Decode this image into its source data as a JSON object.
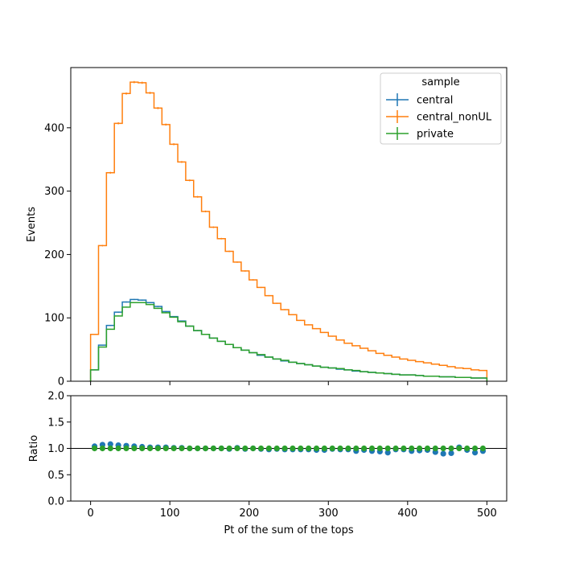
{
  "chart_data": {
    "type": "histogram-step",
    "xlabel": "Pt of the sum of the tops",
    "xlim": [
      -25,
      525
    ],
    "xticks": [
      0,
      100,
      200,
      300,
      400,
      500
    ],
    "legend": {
      "title": "sample",
      "placement": "top-right"
    },
    "main": {
      "ylabel": "Events",
      "ylim": [
        0,
        495
      ],
      "yticks": [
        0,
        100,
        200,
        300,
        400
      ],
      "bin_edges": [
        0,
        10,
        20,
        30,
        40,
        50,
        60,
        70,
        80,
        90,
        100,
        110,
        120,
        130,
        140,
        150,
        160,
        170,
        180,
        190,
        200,
        210,
        220,
        230,
        240,
        250,
        260,
        270,
        280,
        290,
        300,
        310,
        320,
        330,
        340,
        350,
        360,
        370,
        380,
        390,
        400,
        410,
        420,
        430,
        440,
        450,
        460,
        470,
        480,
        490,
        500
      ],
      "series": [
        {
          "name": "central",
          "color": "#1f77b4",
          "values": [
            18,
            57,
            88,
            109,
            125,
            129,
            128,
            124,
            118,
            110,
            102,
            95,
            87,
            80,
            74,
            68,
            63,
            58,
            53,
            49,
            45,
            41,
            38,
            35,
            32,
            30,
            28,
            26,
            24,
            22,
            21,
            19,
            18,
            16,
            15,
            14,
            13,
            12,
            11,
            10,
            10,
            9,
            8,
            8,
            7,
            7,
            6,
            6,
            5,
            5
          ]
        },
        {
          "name": "central_nonUL",
          "color": "#ff7f0e",
          "values": [
            74,
            214,
            329,
            407,
            454,
            472,
            471,
            455,
            431,
            405,
            374,
            346,
            317,
            291,
            268,
            243,
            225,
            205,
            188,
            174,
            160,
            148,
            135,
            123,
            113,
            105,
            96,
            89,
            83,
            77,
            71,
            65,
            60,
            56,
            52,
            48,
            44,
            41,
            38,
            35,
            33,
            31,
            29,
            27,
            25,
            23,
            21,
            20,
            18,
            17
          ]
        },
        {
          "name": "private",
          "color": "#2ca02c",
          "values": [
            18,
            54,
            82,
            103,
            117,
            124,
            124,
            121,
            115,
            108,
            101,
            94,
            87,
            80,
            74,
            68,
            63,
            58,
            53,
            49,
            45,
            42,
            38,
            35,
            33,
            30,
            28,
            26,
            24,
            22,
            21,
            20,
            18,
            17,
            15,
            14,
            13,
            12,
            11,
            10,
            10,
            9,
            8,
            8,
            7,
            7,
            6,
            6,
            5,
            5
          ]
        }
      ]
    },
    "ratio": {
      "ylabel": "Ratio",
      "ylim": [
        0,
        2
      ],
      "yticks": [
        0,
        0.5,
        1.0,
        1.5,
        2.0
      ],
      "ytick_labels": [
        "0.0",
        "0.5",
        "1.0",
        "1.5",
        "2.0"
      ],
      "reference_line": 1.0,
      "x": [
        5,
        15,
        25,
        35,
        45,
        55,
        65,
        75,
        85,
        95,
        105,
        115,
        125,
        135,
        145,
        155,
        165,
        175,
        185,
        195,
        205,
        215,
        225,
        235,
        245,
        255,
        265,
        275,
        285,
        295,
        305,
        315,
        325,
        335,
        345,
        355,
        365,
        375,
        385,
        395,
        405,
        415,
        425,
        435,
        445,
        455,
        465,
        475,
        485,
        495
      ],
      "series": [
        {
          "name": "central",
          "color": "#1f77b4",
          "values": [
            1.04,
            1.07,
            1.08,
            1.06,
            1.05,
            1.04,
            1.03,
            1.02,
            1.02,
            1.02,
            1.01,
            1.01,
            1.0,
            1.0,
            1.0,
            1.0,
            1.0,
            0.99,
            1.01,
            0.99,
            1.0,
            0.99,
            0.98,
            0.99,
            0.98,
            0.98,
            0.98,
            0.98,
            0.97,
            0.97,
            0.99,
            0.98,
            0.98,
            0.95,
            0.97,
            0.95,
            0.94,
            0.92,
            0.98,
            0.98,
            0.95,
            0.96,
            0.97,
            0.93,
            0.9,
            0.91,
            1.02,
            0.97,
            0.92,
            0.95
          ]
        },
        {
          "name": "private",
          "color": "#2ca02c",
          "values": [
            1,
            1,
            1,
            1,
            1,
            1,
            1,
            1,
            1,
            1,
            1,
            1,
            1,
            1,
            1,
            1,
            1,
            1,
            1,
            1,
            1,
            1,
            1,
            1,
            1,
            1,
            1,
            1,
            1,
            1,
            1,
            1,
            1,
            1,
            1,
            1,
            1,
            1,
            1,
            1,
            1,
            1,
            1,
            1,
            1,
            1,
            1,
            1,
            1,
            1
          ]
        }
      ]
    }
  }
}
